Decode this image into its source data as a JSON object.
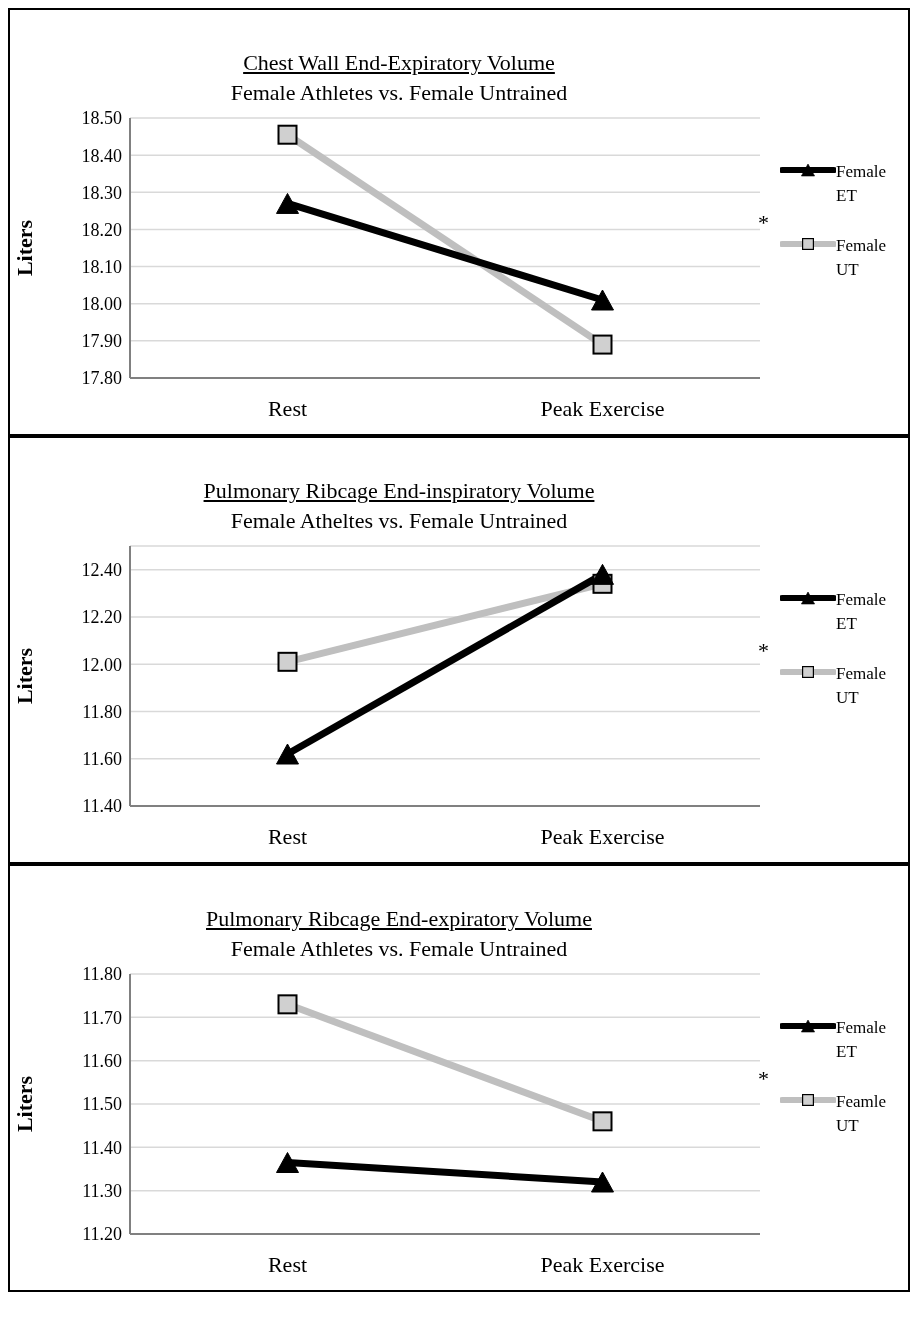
{
  "chart_data": [
    {
      "type": "line",
      "title": "Chest Wall End-Expiratory Volume",
      "subtitle": "Female Athletes vs. Female Untrained",
      "ylabel": "Liters",
      "categories": [
        "Rest",
        "Peak Exercise"
      ],
      "series": [
        {
          "name": "Female ET",
          "color": "#000000",
          "marker": "triangle",
          "values": [
            18.27,
            18.01
          ]
        },
        {
          "name": "Female UT",
          "color": "#bfbfbf",
          "marker": "square",
          "values": [
            18.455,
            17.89
          ]
        }
      ],
      "ylim": [
        17.8,
        18.5
      ],
      "yticks": [
        {
          "value": 17.8,
          "label": "17.80"
        },
        {
          "value": 17.9,
          "label": "17.90"
        },
        {
          "value": 18.0,
          "label": "18.00"
        },
        {
          "value": 18.1,
          "label": "18.10"
        },
        {
          "value": 18.2,
          "label": "18.20"
        },
        {
          "value": 18.3,
          "label": "18.30"
        },
        {
          "value": 18.4,
          "label": "18.40"
        },
        {
          "value": 18.5,
          "label": "18.50"
        }
      ],
      "grid": "y",
      "legend": "right",
      "line_style": "solid",
      "annotations": [
        "*"
      ]
    },
    {
      "type": "line",
      "title": "Pulmonary Ribcage End-inspiratory Volume",
      "subtitle": "Female Atheltes vs. Female Untrained",
      "ylabel": "Liters",
      "categories": [
        "Rest",
        "Peak Exercise"
      ],
      "series": [
        {
          "name": "Female ET",
          "color": "#000000",
          "marker": "triangle",
          "values": [
            11.62,
            12.38
          ]
        },
        {
          "name": "Female UT",
          "color": "#bfbfbf",
          "marker": "square",
          "values": [
            12.01,
            12.34
          ]
        }
      ],
      "ylim": [
        11.4,
        12.5
      ],
      "yticks": [
        {
          "value": 11.4,
          "label": "11.40"
        },
        {
          "value": 11.6,
          "label": "11.60"
        },
        {
          "value": 11.8,
          "label": "11.80"
        },
        {
          "value": 12.0,
          "label": "12.00"
        },
        {
          "value": 12.2,
          "label": "12.20"
        },
        {
          "value": 12.4,
          "label": "12.40"
        }
      ],
      "grid": "y",
      "legend": "right",
      "line_style": "solid",
      "annotations": [
        "*"
      ]
    },
    {
      "type": "line",
      "title": "Pulmonary Ribcage End-expiratory Volume",
      "subtitle": "Female Athletes vs. Female Untrained",
      "ylabel": "Liters",
      "categories": [
        "Rest",
        "Peak Exercise"
      ],
      "series": [
        {
          "name": "Female ET",
          "color": "#000000",
          "marker": "triangle",
          "values": [
            11.365,
            11.32
          ]
        },
        {
          "name": "Feamle UT",
          "color": "#bfbfbf",
          "marker": "square",
          "values": [
            11.73,
            11.46
          ]
        }
      ],
      "ylim": [
        11.2,
        11.8
      ],
      "yticks": [
        {
          "value": 11.2,
          "label": "11.20"
        },
        {
          "value": 11.3,
          "label": "11.30"
        },
        {
          "value": 11.4,
          "label": "11.40"
        },
        {
          "value": 11.5,
          "label": "11.50"
        },
        {
          "value": 11.6,
          "label": "11.60"
        },
        {
          "value": 11.7,
          "label": "11.70"
        },
        {
          "value": 11.8,
          "label": "11.80"
        }
      ],
      "grid": "y",
      "legend": "right",
      "line_style": "solid",
      "annotations": [
        "*"
      ]
    }
  ]
}
